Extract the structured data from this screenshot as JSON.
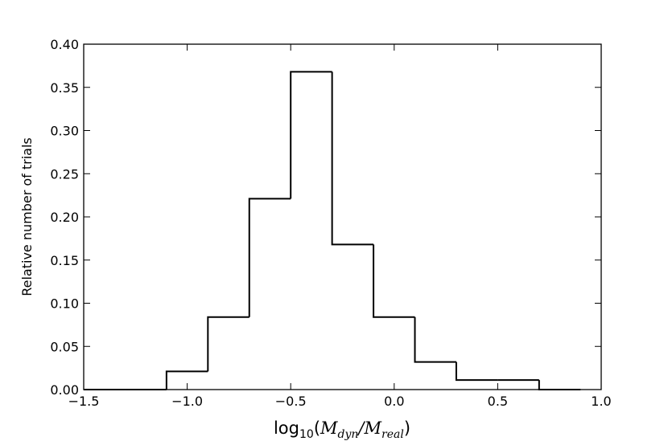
{
  "chart_data": {
    "type": "bar",
    "subtype": "step-histogram",
    "bin_edges": [
      -1.5,
      -1.3,
      -1.1,
      -0.9,
      -0.7,
      -0.5,
      -0.3,
      -0.1,
      0.1,
      0.3,
      0.5,
      0.7,
      0.9
    ],
    "values": [
      0.0,
      0.0,
      0.021,
      0.084,
      0.221,
      0.368,
      0.168,
      0.084,
      0.032,
      0.011,
      0.011,
      0.0
    ],
    "xlim": [
      -1.5,
      1.0
    ],
    "ylim": [
      0.0,
      0.4
    ],
    "xticks": [
      -1.5,
      -1.0,
      -0.5,
      0.0,
      0.5,
      1.0
    ],
    "xtick_labels": [
      "−1.5",
      "−1.0",
      "−0.5",
      "0.0",
      "0.5",
      "1.0"
    ],
    "yticks": [
      0.0,
      0.05,
      0.1,
      0.15,
      0.2,
      0.25,
      0.3,
      0.35,
      0.4
    ],
    "ytick_labels": [
      "0.00",
      "0.05",
      "0.10",
      "0.15",
      "0.20",
      "0.25",
      "0.30",
      "0.35",
      "0.40"
    ],
    "ylabel": "Relative number of trials",
    "xlabel": {
      "prefix": "log",
      "base": "10",
      "open": "(",
      "num_symbol": "M",
      "num_sub": "dyn",
      "slash": "/",
      "den_symbol": "M",
      "den_sub": "real",
      "close": ")"
    },
    "grid": false,
    "line_color": "#000000",
    "fill": "none"
  }
}
